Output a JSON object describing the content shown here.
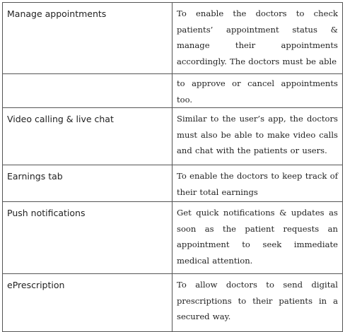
{
  "table": {
    "rows": [
      {
        "feature": "Manage appointments",
        "description": "To enable the doctors to check patients’ appointment status & manage their appointments accordingly. The doctors must be able"
      },
      {
        "feature": "",
        "description": "to approve or cancel appointments too."
      },
      {
        "feature": "Video calling & live chat",
        "description": "Similar to the user’s app, the doctors must also be able to make video calls and chat with the patients or users."
      },
      {
        "feature": "Earnings tab",
        "description": "To enable the doctors to keep track of their total earnings"
      },
      {
        "feature": "Push notifications",
        "description": "Get quick notifications & updates as soon as the patient requests an appointment to seek immediate medical attention."
      },
      {
        "feature": "ePrescription",
        "description": "To allow doctors to send digital prescriptions to their patients in a secured way."
      }
    ]
  }
}
